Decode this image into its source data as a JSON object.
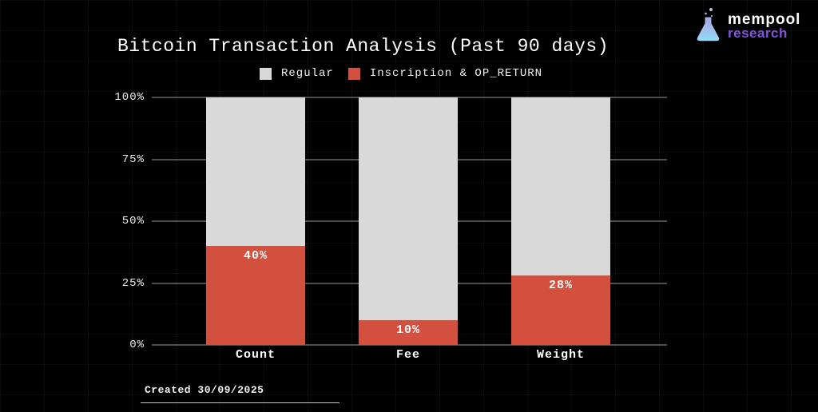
{
  "header": {
    "title": "Bitcoin Transaction Analysis (Past 90 days)"
  },
  "brand": {
    "name": "mempool",
    "sub": "research",
    "icon": "flask-icon"
  },
  "legend": [
    {
      "label": "Regular",
      "color": "#d9d9d9"
    },
    {
      "label": "Inscription & OP_RETURN",
      "color": "#d34f3e"
    }
  ],
  "chart_data": {
    "type": "bar",
    "stacked": true,
    "title": "Bitcoin Transaction Analysis (Past 90 days)",
    "categories": [
      "Count",
      "Fee",
      "Weight"
    ],
    "series": [
      {
        "name": "Inscription & OP_RETURN",
        "values": [
          40,
          10,
          28
        ],
        "color": "#d34f3e"
      },
      {
        "name": "Regular",
        "values": [
          60,
          90,
          72
        ],
        "color": "#d9d9d9"
      }
    ],
    "bar_labels": [
      "40%",
      "10%",
      "28%"
    ],
    "y_ticks": [
      "0%",
      "25%",
      "50%",
      "75%",
      "100%"
    ],
    "ylim": [
      0,
      100
    ],
    "grid": true,
    "grid_color": "#9c9c9c",
    "legend_position": "top",
    "background": "#000000"
  },
  "footer": {
    "created": "Created 30/09/2025"
  }
}
